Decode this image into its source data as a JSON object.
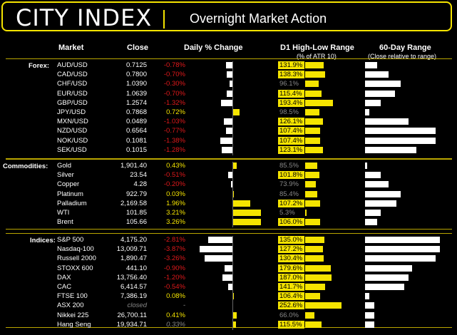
{
  "header": {
    "brand": "CITY INDEX",
    "title": "Overnight Market Action"
  },
  "columns": {
    "market": "Market",
    "close": "Close",
    "daily": "Daily % Change",
    "range": "D1 High-Low Range",
    "range_sub": "(% of ATR 10)",
    "sixty": "60-Day Range",
    "sixty_sub": "(Close relative to range)"
  },
  "sections": [
    {
      "name": "Forex:",
      "rows": [
        {
          "m": "AUD/USD",
          "c": "0.7125",
          "p": "-0.78%",
          "v": -0.78,
          "r": "131.9%",
          "rv": 131.9,
          "s": 0.15
        },
        {
          "m": "CAD/USD",
          "c": "0.7800",
          "p": "-0.70%",
          "v": -0.7,
          "r": "138.3%",
          "rv": 138.3,
          "s": 0.3
        },
        {
          "m": "CHF/USD",
          "c": "1.0390",
          "p": "-0.30%",
          "v": -0.3,
          "r": "96.1%",
          "rv": 96.1,
          "s": 0.45
        },
        {
          "m": "EUR/USD",
          "c": "1.0639",
          "p": "-0.70%",
          "v": -0.7,
          "r": "115.4%",
          "rv": 115.4,
          "s": 0.38
        },
        {
          "m": "GBP/USD",
          "c": "1.2574",
          "p": "-1.32%",
          "v": -1.32,
          "r": "193.4%",
          "rv": 193.4,
          "s": 0.2
        },
        {
          "m": "JPY/USD",
          "c": "0.7868",
          "p": "0.72%",
          "v": 0.72,
          "r": "98.5%",
          "rv": 98.5,
          "s": 0.05
        },
        {
          "m": "MXN/USD",
          "c": "0.0489",
          "p": "-1.03%",
          "v": -1.03,
          "r": "126.1%",
          "rv": 126.1,
          "s": 0.55
        },
        {
          "m": "NZD/USD",
          "c": "0.6564",
          "p": "-0.77%",
          "v": -0.77,
          "r": "107.4%",
          "rv": 107.4,
          "s": 0.9
        },
        {
          "m": "NOK/USD",
          "c": "0.1081",
          "p": "-1.38%",
          "v": -1.38,
          "r": "107.4%",
          "rv": 107.4,
          "s": 0.9
        },
        {
          "m": "SEK/USD",
          "c": "0.1015",
          "p": "-1.28%",
          "v": -1.28,
          "r": "123.1%",
          "rv": 123.1,
          "s": 0.65
        }
      ]
    },
    {
      "name": "Commodities:",
      "rows": [
        {
          "m": "Gold",
          "c": "1,901.40",
          "p": "0.43%",
          "v": 0.43,
          "r": "85.5%",
          "rv": 85.5,
          "s": 0.02
        },
        {
          "m": "Silver",
          "c": "23.54",
          "p": "-0.51%",
          "v": -0.51,
          "r": "101.8%",
          "rv": 101.8,
          "s": 0.2
        },
        {
          "m": "Copper",
          "c": "4.28",
          "p": "-0.20%",
          "v": -0.2,
          "r": "73.9%",
          "rv": 73.9,
          "s": 0.3
        },
        {
          "m": "Platinum",
          "c": "922.79",
          "p": "0.03%",
          "v": 0.03,
          "r": "85.4%",
          "rv": 85.4,
          "s": 0.45
        },
        {
          "m": "Palladium",
          "c": "2,169.58",
          "p": "1.96%",
          "v": 1.96,
          "r": "107.2%",
          "rv": 107.2,
          "s": 0.4
        },
        {
          "m": "WTI",
          "c": "101.85",
          "p": "3.21%",
          "v": 3.21,
          "r": "5.3%",
          "rv": 5.3,
          "s": 0.2
        },
        {
          "m": "Brent",
          "c": "105.66",
          "p": "3.26%",
          "v": 3.26,
          "r": "106.0%",
          "rv": 106.0,
          "s": 0.15
        }
      ]
    },
    {
      "name": "Indices:",
      "rows": [
        {
          "m": "S&P 500",
          "c": "4,175.20",
          "p": "-2.81%",
          "v": -2.81,
          "r": "135.0%",
          "rv": 135.0,
          "s": 0.95
        },
        {
          "m": "Nasdaq-100",
          "c": "13,009.71",
          "p": "-3.87%",
          "v": -3.87,
          "r": "127.2%",
          "rv": 127.2,
          "s": 0.95
        },
        {
          "m": "Russell 2000",
          "c": "1,890.47",
          "p": "-3.26%",
          "v": -3.26,
          "r": "130.4%",
          "rv": 130.4,
          "s": 0.9
        },
        {
          "m": "STOXX 600",
          "c": "441.10",
          "p": "-0.90%",
          "v": -0.9,
          "r": "179.6%",
          "rv": 179.6,
          "s": 0.6
        },
        {
          "m": "DAX",
          "c": "13,756.40",
          "p": "-1.20%",
          "v": -1.2,
          "r": "187.0%",
          "rv": 187.0,
          "s": 0.55
        },
        {
          "m": "CAC",
          "c": "6,414.57",
          "p": "-0.54%",
          "v": -0.54,
          "r": "141.7%",
          "rv": 141.7,
          "s": 0.5
        },
        {
          "m": "FTSE 100",
          "c": "7,386.19",
          "p": "0.08%",
          "v": 0.08,
          "r": "106.4%",
          "rv": 106.4,
          "s": 0.05
        },
        {
          "m": "ASX 200",
          "c": "closed",
          "p": "-",
          "v": 0,
          "r": "252.6%",
          "rv": 252.6,
          "s": 0.12
        },
        {
          "m": "Nikkei 225",
          "c": "26,700.11",
          "p": "0.41%",
          "v": 0.41,
          "r": "66.0%",
          "rv": 66.0,
          "s": 0.12
        },
        {
          "m": "Hang Seng",
          "c": "19,934.71",
          "p": "0.33%",
          "v": 0.33,
          "r": "115.5%",
          "rv": 115.5,
          "s": 0.12
        }
      ]
    }
  ]
}
